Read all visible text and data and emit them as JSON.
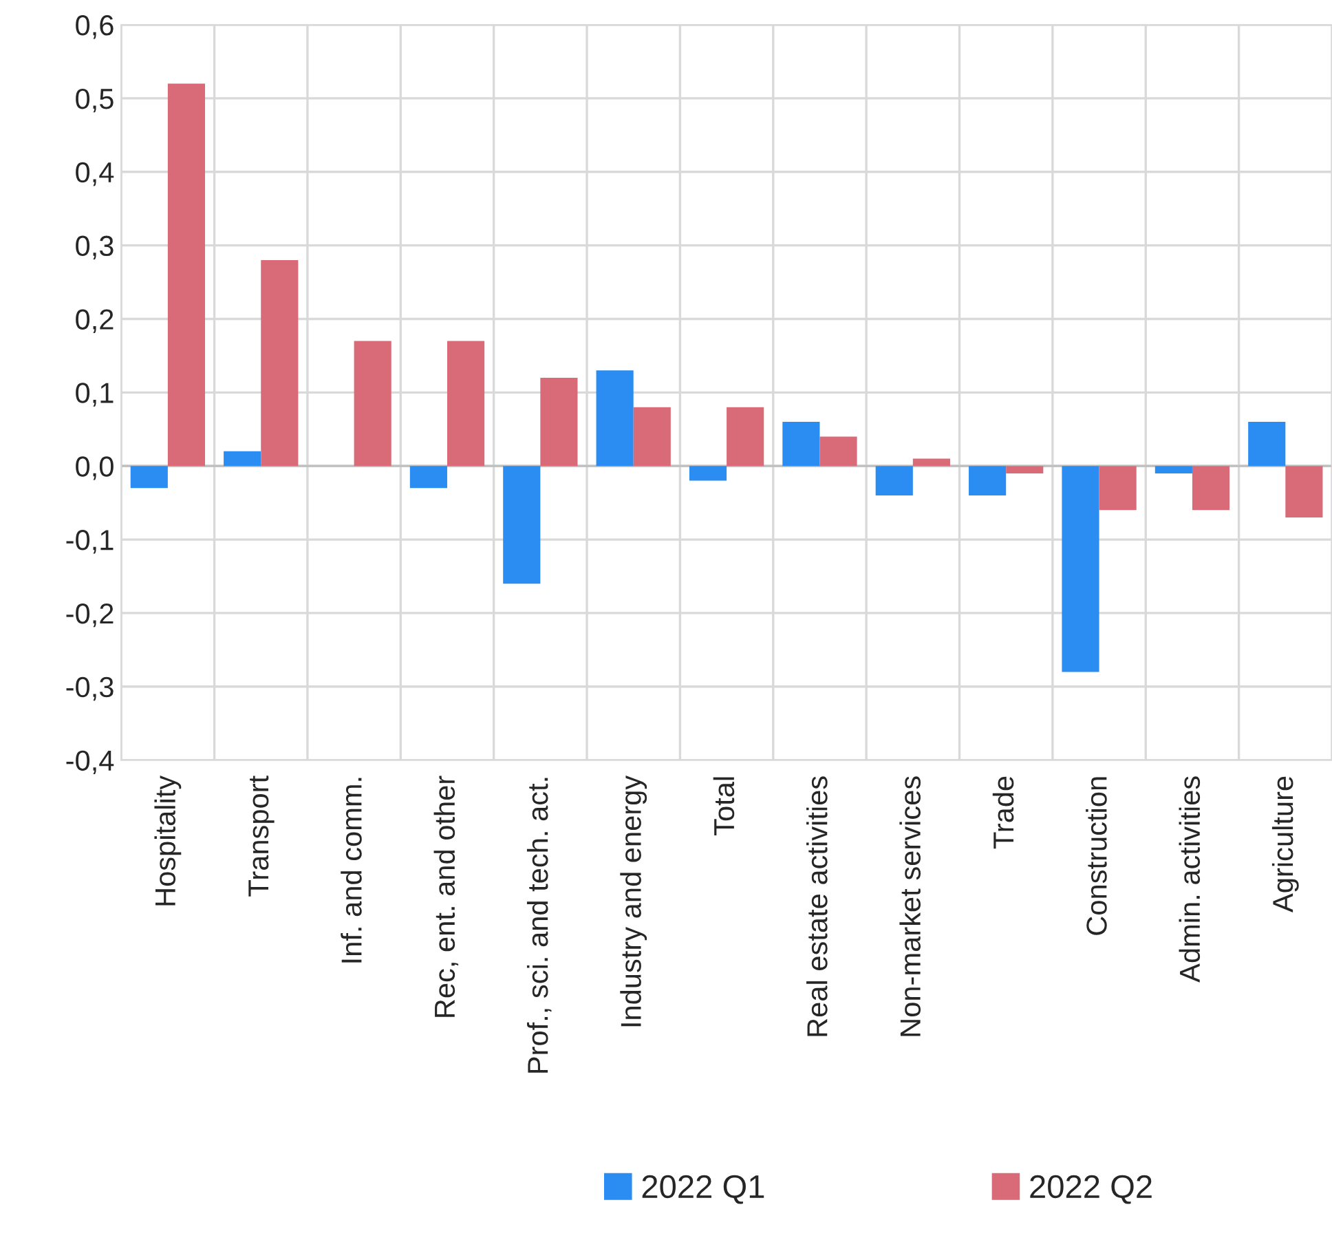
{
  "chart_data": {
    "type": "bar",
    "categories": [
      "Hospitality",
      "Transport",
      "Inf. and comm.",
      "Rec, ent. and other",
      "Prof., sci. and tech. act.",
      "Industry and energy",
      "Total",
      "Real estate activities",
      "Non-market services",
      "Trade",
      "Construction",
      "Admin. activities",
      "Agriculture"
    ],
    "series": [
      {
        "name": "2022 Q1",
        "color": "#2b8cf2",
        "values": [
          -0.03,
          0.02,
          null,
          -0.03,
          -0.16,
          0.13,
          -0.02,
          0.06,
          -0.04,
          -0.04,
          -0.28,
          -0.01,
          0.06
        ]
      },
      {
        "name": "2022 Q2",
        "color": "#d96b78",
        "values": [
          0.52,
          0.28,
          0.17,
          0.17,
          0.12,
          0.08,
          0.08,
          0.04,
          0.01,
          -0.01,
          -0.06,
          -0.06,
          -0.07
        ]
      }
    ],
    "ylim": [
      -0.4,
      0.6
    ],
    "yticks": [
      {
        "value": -0.4,
        "label": "-0,4"
      },
      {
        "value": -0.3,
        "label": "-0,3"
      },
      {
        "value": -0.2,
        "label": "-0,2"
      },
      {
        "value": -0.1,
        "label": "-0,1"
      },
      {
        "value": 0.0,
        "label": "0,0"
      },
      {
        "value": 0.1,
        "label": "0,1"
      },
      {
        "value": 0.2,
        "label": "0,2"
      },
      {
        "value": 0.3,
        "label": "0,3"
      },
      {
        "value": 0.4,
        "label": "0,4"
      },
      {
        "value": 0.5,
        "label": "0,5"
      },
      {
        "value": 0.6,
        "label": "0,6"
      }
    ],
    "grid": true,
    "legend": "bottom"
  }
}
